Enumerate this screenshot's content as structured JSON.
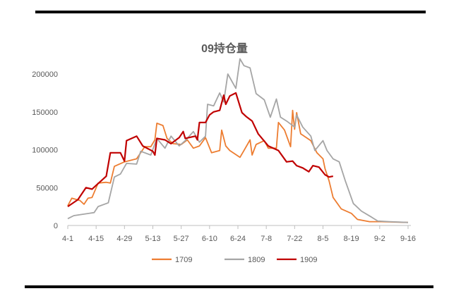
{
  "chart_data": {
    "type": "line",
    "title": "09持仓量",
    "xlabel": "",
    "ylabel": "",
    "x_ticks": [
      "4-1",
      "4-15",
      "4-29",
      "5-13",
      "5-27",
      "6-10",
      "6-24",
      "7-8",
      "7-22",
      "8-5",
      "8-19",
      "9-2",
      "9-16"
    ],
    "y_ticks": [
      "0",
      "50000",
      "100000",
      "150000",
      "200000"
    ],
    "ylim": [
      0,
      200000
    ],
    "xlim": [
      "4-1",
      "9-16"
    ],
    "grid": false,
    "legend_placement": "bottom",
    "series": [
      {
        "name": "1709",
        "color": "#ED7D31",
        "points": [
          [
            "4-1",
            26000
          ],
          [
            "4-3",
            36000
          ],
          [
            "4-7",
            33000
          ],
          [
            "4-9",
            28000
          ],
          [
            "4-11",
            36000
          ],
          [
            "4-13",
            37000
          ],
          [
            "4-16",
            56000
          ],
          [
            "4-20",
            57000
          ],
          [
            "4-22",
            56000
          ],
          [
            "4-24",
            78000
          ],
          [
            "4-29",
            84000
          ],
          [
            "5-5",
            88000
          ],
          [
            "5-9",
            104000
          ],
          [
            "5-12",
            104000
          ],
          [
            "5-14",
            113000
          ],
          [
            "5-15",
            135000
          ],
          [
            "5-18",
            132000
          ],
          [
            "5-20",
            115000
          ],
          [
            "5-23",
            108000
          ],
          [
            "5-27",
            107000
          ],
          [
            "5-30",
            113000
          ],
          [
            "6-2",
            102000
          ],
          [
            "6-5",
            105000
          ],
          [
            "6-8",
            116000
          ],
          [
            "6-11",
            96000
          ],
          [
            "6-15",
            99000
          ],
          [
            "6-16",
            126000
          ],
          [
            "6-18",
            105000
          ],
          [
            "6-20",
            99000
          ],
          [
            "6-25",
            90000
          ],
          [
            "6-27",
            99000
          ],
          [
            "6-30",
            113000
          ],
          [
            "7-1",
            93000
          ],
          [
            "7-3",
            107000
          ],
          [
            "7-7",
            112000
          ],
          [
            "7-9",
            102000
          ],
          [
            "7-13",
            102000
          ],
          [
            "7-14",
            136000
          ],
          [
            "7-17",
            126000
          ],
          [
            "7-20",
            104000
          ],
          [
            "7-21",
            152000
          ],
          [
            "7-22",
            127000
          ],
          [
            "7-23",
            149000
          ],
          [
            "7-25",
            121000
          ],
          [
            "7-30",
            112000
          ],
          [
            "8-2",
            96000
          ],
          [
            "8-5",
            88000
          ],
          [
            "8-6",
            75000
          ],
          [
            "8-8",
            59000
          ],
          [
            "8-10",
            37000
          ],
          [
            "8-14",
            22000
          ],
          [
            "8-19",
            16000
          ],
          [
            "8-22",
            8000
          ],
          [
            "8-28",
            5000
          ],
          [
            "9-3",
            5000
          ],
          [
            "9-16",
            4000
          ]
        ]
      },
      {
        "name": "1809",
        "color": "#A5A5A5",
        "points": [
          [
            "4-1",
            9000
          ],
          [
            "4-4",
            13000
          ],
          [
            "4-14",
            17000
          ],
          [
            "4-16",
            25000
          ],
          [
            "4-21",
            30000
          ],
          [
            "4-24",
            64000
          ],
          [
            "4-27",
            68000
          ],
          [
            "4-30",
            82000
          ],
          [
            "5-5",
            81000
          ],
          [
            "5-7",
            98000
          ],
          [
            "5-12",
            93000
          ],
          [
            "5-15",
            115000
          ],
          [
            "5-19",
            102000
          ],
          [
            "5-22",
            118000
          ],
          [
            "5-26",
            105000
          ],
          [
            "5-29",
            112000
          ],
          [
            "6-2",
            124000
          ],
          [
            "6-5",
            110000
          ],
          [
            "6-8",
            118000
          ],
          [
            "6-9",
            160000
          ],
          [
            "6-12",
            158000
          ],
          [
            "6-15",
            175000
          ],
          [
            "6-17",
            163000
          ],
          [
            "6-19",
            200000
          ],
          [
            "6-23",
            181000
          ],
          [
            "6-25",
            220000
          ],
          [
            "6-27",
            211000
          ],
          [
            "6-30",
            208000
          ],
          [
            "7-3",
            174000
          ],
          [
            "7-7",
            166000
          ],
          [
            "7-10",
            143000
          ],
          [
            "7-13",
            167000
          ],
          [
            "7-15",
            143000
          ],
          [
            "7-18",
            138000
          ],
          [
            "7-22",
            130000
          ],
          [
            "7-23",
            146000
          ],
          [
            "7-26",
            130000
          ],
          [
            "7-30",
            118000
          ],
          [
            "8-1",
            99000
          ],
          [
            "8-5",
            112000
          ],
          [
            "8-7",
            99000
          ],
          [
            "8-10",
            88000
          ],
          [
            "8-13",
            84000
          ],
          [
            "8-16",
            59000
          ],
          [
            "8-20",
            29000
          ],
          [
            "8-24",
            19000
          ],
          [
            "8-29",
            11000
          ],
          [
            "9-1",
            6000
          ],
          [
            "9-7",
            5000
          ],
          [
            "9-16",
            4000
          ]
        ]
      },
      {
        "name": "1909",
        "color": "#C00000",
        "points": [
          [
            "4-1",
            25000
          ],
          [
            "4-6",
            34000
          ],
          [
            "4-10",
            50000
          ],
          [
            "4-13",
            48000
          ],
          [
            "4-15",
            53000
          ],
          [
            "4-20",
            65000
          ],
          [
            "4-22",
            96000
          ],
          [
            "4-27",
            96000
          ],
          [
            "4-29",
            85000
          ],
          [
            "4-30",
            112000
          ],
          [
            "5-5",
            118000
          ],
          [
            "5-8",
            105000
          ],
          [
            "5-13",
            98000
          ],
          [
            "5-14",
            93000
          ],
          [
            "5-15",
            115000
          ],
          [
            "5-19",
            113000
          ],
          [
            "5-22",
            108000
          ],
          [
            "5-26",
            116000
          ],
          [
            "5-28",
            124000
          ],
          [
            "5-29",
            115000
          ],
          [
            "6-3",
            118000
          ],
          [
            "6-4",
            113000
          ],
          [
            "6-5",
            136000
          ],
          [
            "6-8",
            136000
          ],
          [
            "6-10",
            146000
          ],
          [
            "6-12",
            150000
          ],
          [
            "6-15",
            152000
          ],
          [
            "6-17",
            172000
          ],
          [
            "6-18",
            160000
          ],
          [
            "6-20",
            171000
          ],
          [
            "6-23",
            175000
          ],
          [
            "6-26",
            149000
          ],
          [
            "6-28",
            144000
          ],
          [
            "7-1",
            138000
          ],
          [
            "7-4",
            121000
          ],
          [
            "7-9",
            105000
          ],
          [
            "7-14",
            99000
          ],
          [
            "7-18",
            84000
          ],
          [
            "7-21",
            85000
          ],
          [
            "7-23",
            79000
          ],
          [
            "7-26",
            76000
          ],
          [
            "7-29",
            71000
          ],
          [
            "7-31",
            79000
          ],
          [
            "8-3",
            77000
          ],
          [
            "8-6",
            67000
          ],
          [
            "8-8",
            64000
          ],
          [
            "8-10",
            65000
          ]
        ]
      }
    ]
  }
}
